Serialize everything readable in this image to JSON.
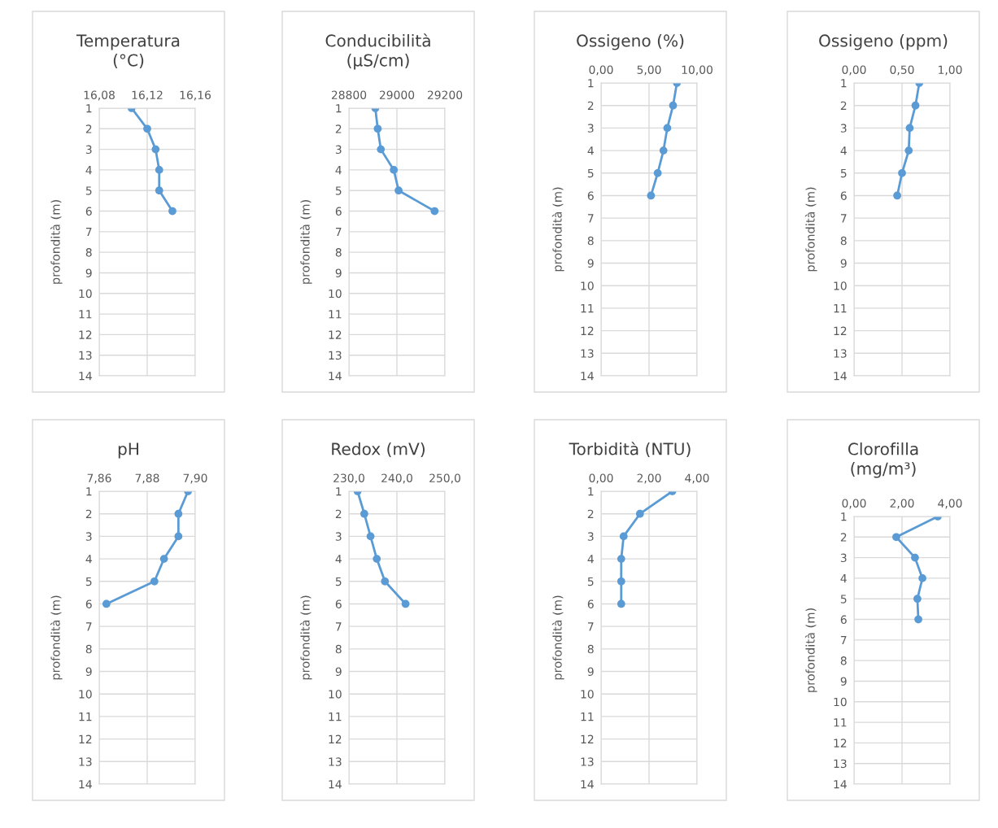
{
  "chart_data": [
    {
      "type": "line",
      "title": "Temperatura\n(°C)",
      "ylabel": "profondità (m)",
      "marker": "circle",
      "grid": true,
      "legend": false,
      "series": [
        {
          "color": "#5b9bd5",
          "x": [
            16.107,
            16.12,
            16.127,
            16.13,
            16.13,
            16.141
          ],
          "values": [
            1,
            2,
            3,
            4,
            5,
            6
          ]
        }
      ],
      "xlim": [
        16.08,
        16.16
      ],
      "xticks": [
        {
          "value": 16.08,
          "label": "16,08"
        },
        {
          "value": 16.12,
          "label": "16,12"
        },
        {
          "value": 16.16,
          "label": "16,16"
        }
      ],
      "ylim": [
        14,
        1
      ],
      "yticks": [
        1,
        2,
        3,
        4,
        5,
        6,
        7,
        8,
        9,
        10,
        11,
        12,
        13,
        14
      ]
    },
    {
      "type": "line",
      "title": "Conducibilità\n(µS/cm)",
      "ylabel": "profondità (m)",
      "marker": "circle",
      "grid": true,
      "legend": false,
      "series": [
        {
          "color": "#5b9bd5",
          "x": [
            28910,
            28920,
            28933,
            28987,
            29007,
            29157
          ],
          "values": [
            1,
            2,
            3,
            4,
            5,
            6
          ]
        }
      ],
      "xlim": [
        28800,
        29200
      ],
      "xticks": [
        28800,
        29000,
        29200
      ],
      "ylim": [
        14,
        1
      ],
      "yticks": [
        1,
        2,
        3,
        4,
        5,
        6,
        7,
        8,
        9,
        10,
        11,
        12,
        13,
        14
      ]
    },
    {
      "type": "line",
      "title": "Ossigeno (%)",
      "ylabel": "profondità (m)",
      "marker": "circle",
      "grid": true,
      "legend": false,
      "series": [
        {
          "color": "#5b9bd5",
          "x": [
            7.9,
            7.5,
            6.9,
            6.5,
            5.9,
            5.2
          ],
          "values": [
            1,
            2,
            3,
            4,
            5,
            6
          ]
        }
      ],
      "xlim": [
        0,
        10
      ],
      "xticks": [
        {
          "value": 0,
          "label": "0,00"
        },
        {
          "value": 5,
          "label": "5,00"
        },
        {
          "value": 10,
          "label": "10,00"
        }
      ],
      "ylim": [
        14,
        1
      ],
      "yticks": [
        1,
        2,
        3,
        4,
        5,
        6,
        7,
        8,
        9,
        10,
        11,
        12,
        13,
        14
      ]
    },
    {
      "type": "line",
      "title": "Ossigeno (ppm)",
      "ylabel": "profondità (m)",
      "marker": "circle",
      "grid": true,
      "legend": false,
      "series": [
        {
          "color": "#5b9bd5",
          "x": [
            0.68,
            0.64,
            0.58,
            0.57,
            0.5,
            0.45
          ],
          "values": [
            1,
            2,
            3,
            4,
            5,
            6
          ]
        }
      ],
      "xlim": [
        0,
        1
      ],
      "xticks": [
        {
          "value": 0,
          "label": "0,00"
        },
        {
          "value": 0.5,
          "label": "0,50"
        },
        {
          "value": 1,
          "label": "1,00"
        }
      ],
      "ylim": [
        14,
        1
      ],
      "yticks": [
        1,
        2,
        3,
        4,
        5,
        6,
        7,
        8,
        9,
        10,
        11,
        12,
        13,
        14
      ]
    },
    {
      "type": "line",
      "title": "pH",
      "ylabel": "profondità (m)",
      "marker": "circle",
      "grid": true,
      "legend": false,
      "series": [
        {
          "color": "#5b9bd5",
          "x": [
            7.897,
            7.893,
            7.893,
            7.887,
            7.883,
            7.863
          ],
          "values": [
            1,
            2,
            3,
            4,
            5,
            6
          ]
        }
      ],
      "xlim": [
        7.86,
        7.9
      ],
      "xticks": [
        {
          "value": 7.86,
          "label": "7,86"
        },
        {
          "value": 7.88,
          "label": "7,88"
        },
        {
          "value": 7.9,
          "label": "7,90"
        }
      ],
      "ylim": [
        14,
        1
      ],
      "yticks": [
        1,
        2,
        3,
        4,
        5,
        6,
        7,
        8,
        9,
        10,
        11,
        12,
        13,
        14
      ]
    },
    {
      "type": "line",
      "title": "Redox (mV)",
      "ylabel": "profondità (m)",
      "marker": "circle",
      "grid": true,
      "legend": false,
      "series": [
        {
          "color": "#5b9bd5",
          "x": [
            231.8,
            233.2,
            234.5,
            235.8,
            237.5,
            241.8
          ],
          "values": [
            1,
            2,
            3,
            4,
            5,
            6
          ]
        }
      ],
      "xlim": [
        230,
        250
      ],
      "xticks": [
        {
          "value": 230,
          "label": "230,0"
        },
        {
          "value": 240,
          "label": "240,0"
        },
        {
          "value": 250,
          "label": "250,0"
        }
      ],
      "ylim": [
        14,
        1
      ],
      "yticks": [
        1,
        2,
        3,
        4,
        5,
        6,
        7,
        8,
        9,
        10,
        11,
        12,
        13,
        14
      ]
    },
    {
      "type": "line",
      "title": "Torbidità (NTU)",
      "ylabel": "profondità (m)",
      "marker": "circle",
      "grid": true,
      "legend": false,
      "series": [
        {
          "color": "#5b9bd5",
          "x": [
            2.97,
            1.62,
            0.94,
            0.84,
            0.84,
            0.84
          ],
          "values": [
            1,
            2,
            3,
            4,
            5,
            6
          ]
        }
      ],
      "xlim": [
        0,
        4
      ],
      "xticks": [
        {
          "value": 0,
          "label": "0,00"
        },
        {
          "value": 2,
          "label": "2,00"
        },
        {
          "value": 4,
          "label": "4,00"
        }
      ],
      "ylim": [
        14,
        1
      ],
      "yticks": [
        1,
        2,
        3,
        4,
        5,
        6,
        7,
        8,
        9,
        10,
        11,
        12,
        13,
        14
      ]
    },
    {
      "type": "line",
      "title": "Clorofilla\n(mg/m³)",
      "ylabel": "profondità (m)",
      "marker": "circle",
      "grid": true,
      "legend": false,
      "series": [
        {
          "color": "#5b9bd5",
          "x": [
            3.49,
            1.76,
            2.54,
            2.85,
            2.64,
            2.68
          ],
          "values": [
            1,
            2,
            3,
            4,
            5,
            6
          ]
        }
      ],
      "xlim": [
        0,
        4
      ],
      "xticks": [
        {
          "value": 0,
          "label": "0,00"
        },
        {
          "value": 2,
          "label": "2,00"
        },
        {
          "value": 4,
          "label": "4,00"
        }
      ],
      "ylim": [
        14,
        1
      ],
      "yticks": [
        1,
        2,
        3,
        4,
        5,
        6,
        7,
        8,
        9,
        10,
        11,
        12,
        13,
        14
      ]
    }
  ]
}
